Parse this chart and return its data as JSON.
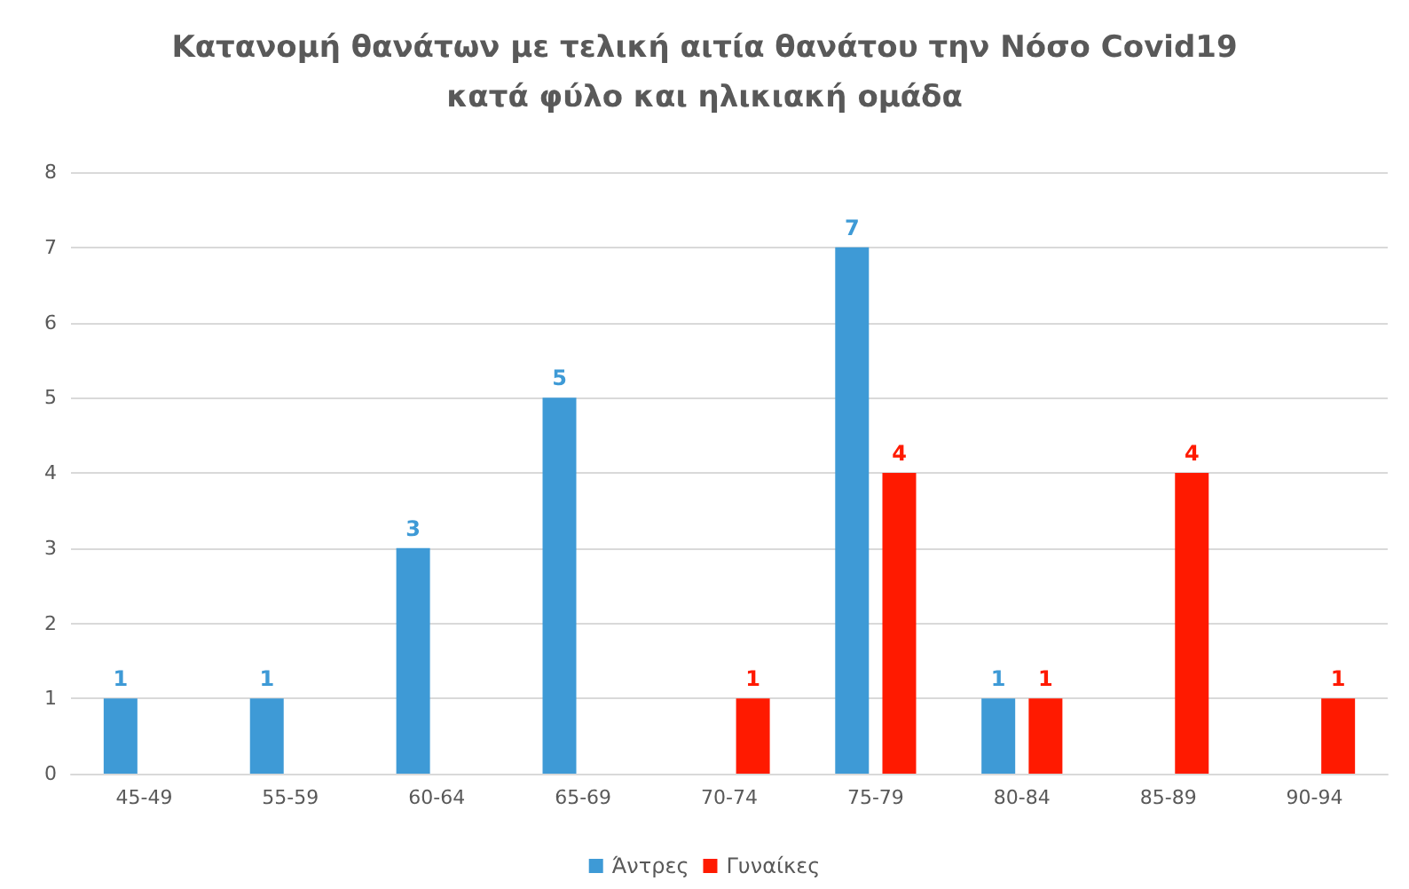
{
  "chart_data": {
    "type": "bar",
    "title": "Κατανομή θανάτων με τελική αιτία θανάτου την Νόσο Covid19\nκατά φύλο και ηλικιακή ομάδα",
    "categories": [
      "45-49",
      "55-59",
      "60-64",
      "65-69",
      "70-74",
      "75-79",
      "80-84",
      "85-89",
      "90-94"
    ],
    "series": [
      {
        "name": "Άντρες",
        "color": "#3e9ad6",
        "values": [
          1,
          1,
          3,
          5,
          null,
          7,
          1,
          null,
          null
        ]
      },
      {
        "name": "Γυναίκες",
        "color": "#ff1a00",
        "values": [
          null,
          null,
          null,
          null,
          1,
          4,
          1,
          4,
          1
        ]
      }
    ],
    "ylim": [
      0,
      8
    ],
    "yticks": [
      0,
      1,
      2,
      3,
      4,
      5,
      6,
      7,
      8
    ],
    "grid": "y",
    "legend": "bottom",
    "data_labels": true
  }
}
